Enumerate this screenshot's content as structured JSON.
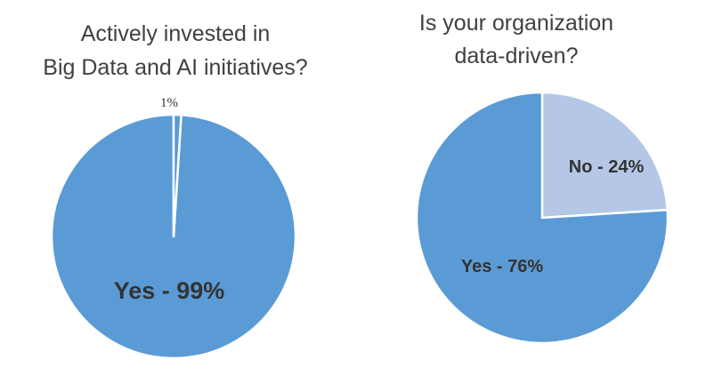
{
  "chart_data": [
    {
      "type": "pie",
      "title_lines": [
        "Actively invested in",
        "Big Data and AI initiatives?"
      ],
      "slices": [
        {
          "label": "Yes - 99%",
          "value": 99,
          "color": "#5B9BD5",
          "label_color": "#333333"
        },
        {
          "label": "1%",
          "value": 1,
          "color": "#5B9BD5",
          "label_color": "#333333"
        }
      ],
      "start": "12 o'clock",
      "direction": "counter-clockwise",
      "legend": "none"
    },
    {
      "type": "pie",
      "title_lines": [
        "Is your organization",
        "data-driven?"
      ],
      "slices": [
        {
          "label": "No - 24%",
          "value": 24,
          "color": "#B4C7E7",
          "label_color": "#333333"
        },
        {
          "label": "Yes - 76%",
          "value": 76,
          "color": "#5B9BD5",
          "label_color": "#333333"
        }
      ],
      "start": "12 o'clock",
      "direction": "clockwise",
      "legend": "none"
    }
  ]
}
